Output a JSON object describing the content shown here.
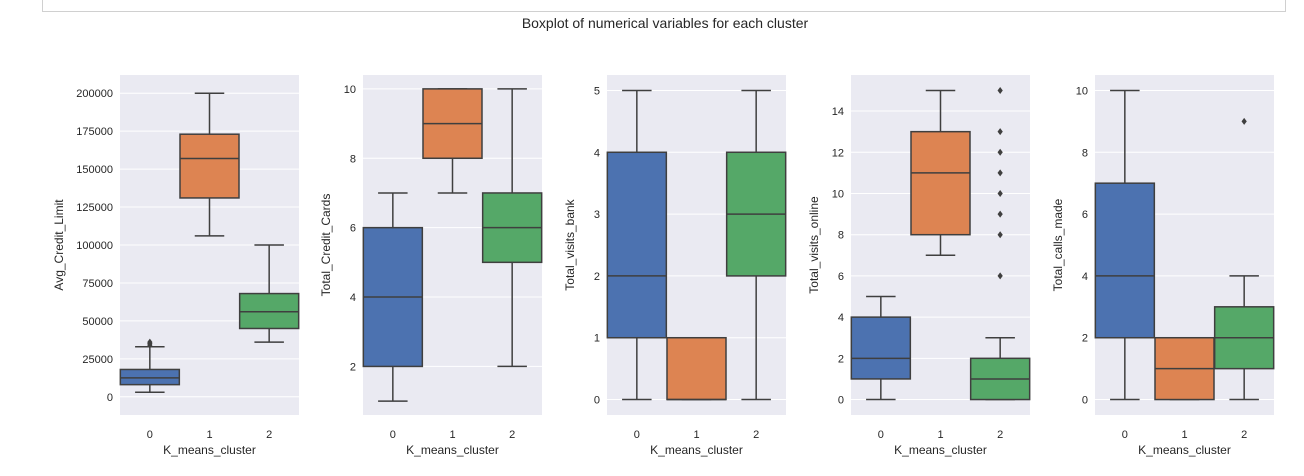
{
  "chart_data": {
    "type": "boxplot",
    "title": "Boxplot of numerical variables for each cluster",
    "palette": [
      "#4c72b0",
      "#dd8452",
      "#55a868"
    ],
    "background": "#eaeaf2",
    "grid": true,
    "categories": [
      "0",
      "1",
      "2"
    ],
    "panels": [
      {
        "xlabel": "K_means_cluster",
        "ylabel": "Avg_Credit_Limit",
        "ylim": [
          -12000,
          212000
        ],
        "yticks": [
          0,
          25000,
          50000,
          75000,
          100000,
          125000,
          150000,
          175000,
          200000
        ],
        "boxes": [
          {
            "whislo": 3000,
            "q1": 8000,
            "med": 12500,
            "q3": 18000,
            "whishi": 33000,
            "fliers": [
              34000,
              35000,
              36000
            ]
          },
          {
            "whislo": 106000,
            "q1": 131000,
            "med": 157000,
            "q3": 173000,
            "whishi": 200000,
            "fliers": []
          },
          {
            "whislo": 36000,
            "q1": 45000,
            "med": 56000,
            "q3": 68000,
            "whishi": 100000,
            "fliers": []
          }
        ]
      },
      {
        "xlabel": "K_means_cluster",
        "ylabel": "Total_Credit_Cards",
        "ylim": [
          0.6,
          10.4
        ],
        "yticks": [
          2,
          4,
          6,
          8,
          10
        ],
        "boxes": [
          {
            "whislo": 1,
            "q1": 2,
            "med": 4,
            "q3": 6,
            "whishi": 7,
            "fliers": []
          },
          {
            "whislo": 7,
            "q1": 8,
            "med": 9,
            "q3": 10,
            "whishi": 10,
            "fliers": []
          },
          {
            "whislo": 2,
            "q1": 5,
            "med": 6,
            "q3": 7,
            "whishi": 10,
            "fliers": []
          }
        ]
      },
      {
        "xlabel": "K_means_cluster",
        "ylabel": "Total_visits_bank",
        "ylim": [
          -0.25,
          5.25
        ],
        "yticks": [
          0,
          1,
          2,
          3,
          4,
          5
        ],
        "boxes": [
          {
            "whislo": 0,
            "q1": 1,
            "med": 2,
            "q3": 4,
            "whishi": 5,
            "fliers": []
          },
          {
            "whislo": 0,
            "q1": 0,
            "med": 0,
            "q3": 1,
            "whishi": 1,
            "fliers": []
          },
          {
            "whislo": 0,
            "q1": 2,
            "med": 3,
            "q3": 4,
            "whishi": 5,
            "fliers": []
          }
        ]
      },
      {
        "xlabel": "K_means_cluster",
        "ylabel": "Total_visits_online",
        "ylim": [
          -0.75,
          15.75
        ],
        "yticks": [
          0,
          2,
          4,
          6,
          8,
          10,
          12,
          14
        ],
        "boxes": [
          {
            "whislo": 0,
            "q1": 1,
            "med": 2,
            "q3": 4,
            "whishi": 5,
            "fliers": []
          },
          {
            "whislo": 7,
            "q1": 8,
            "med": 11,
            "q3": 13,
            "whishi": 15,
            "fliers": []
          },
          {
            "whislo": 0,
            "q1": 0,
            "med": 1,
            "q3": 2,
            "whishi": 3,
            "fliers": [
              6,
              8,
              9,
              10,
              11,
              12,
              13,
              15
            ]
          }
        ]
      },
      {
        "xlabel": "K_means_cluster",
        "ylabel": "Total_calls_made",
        "ylim": [
          -0.5,
          10.5
        ],
        "yticks": [
          0,
          2,
          4,
          6,
          8,
          10
        ],
        "boxes": [
          {
            "whislo": 0,
            "q1": 2,
            "med": 4,
            "q3": 7,
            "whishi": 10,
            "fliers": []
          },
          {
            "whislo": 0,
            "q1": 0,
            "med": 1,
            "q3": 2,
            "whishi": 2,
            "fliers": []
          },
          {
            "whislo": 0,
            "q1": 1,
            "med": 2,
            "q3": 3,
            "whishi": 4,
            "fliers": [
              9
            ]
          }
        ]
      }
    ]
  }
}
